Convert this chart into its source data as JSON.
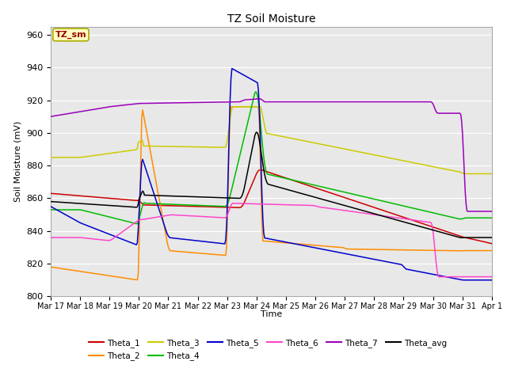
{
  "title": "TZ Soil Moisture",
  "ylabel": "Soil Moisture (mV)",
  "xlabel": "Time",
  "ylim": [
    800,
    965
  ],
  "yticks": [
    800,
    820,
    840,
    860,
    880,
    900,
    920,
    940,
    960
  ],
  "plot_bg": "#e8e8e8",
  "fig_bg": "#ffffff",
  "legend_label": "TZ_sm",
  "colors": {
    "Theta_1": "#cc0000",
    "Theta_2": "#ff8c00",
    "Theta_3": "#cccc00",
    "Theta_4": "#00bb00",
    "Theta_5": "#0000cc",
    "Theta_6": "#ff44cc",
    "Theta_7": "#9900bb",
    "Theta_avg": "#000000"
  },
  "x_tick_labels": [
    "Mar 17",
    "Mar 18",
    "Mar 19",
    "Mar 20",
    "Mar 21",
    "Mar 22",
    "Mar 23",
    "Mar 24",
    "Mar 25",
    "Mar 26",
    "Mar 27",
    "Mar 28",
    "Mar 29",
    "Mar 30",
    "Mar 31",
    "Apr 1"
  ],
  "n_points": 500
}
